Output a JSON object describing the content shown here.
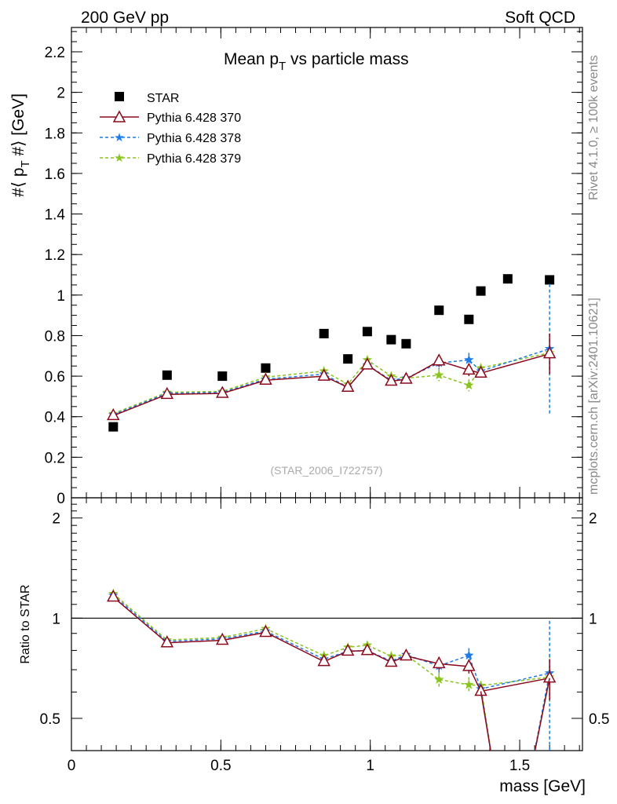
{
  "header": {
    "left": "200 GeV pp",
    "right": "Soft QCD"
  },
  "side_labels": {
    "rivet": "Rivet 4.1.0, ≥ 100k events",
    "mcplots": "mcplots.cern.ch [arXiv:2401.10621]"
  },
  "chart_data": {
    "type": "scatter",
    "title": "Mean p_T vs particle mass",
    "watermark": "(STAR_2006_I722757)",
    "xlabel": "mass [GeV]",
    "ylabel_main": "#⟨ p_T #⟩ [GeV]",
    "ylabel_ratio": "Ratio to STAR",
    "xlim": [
      0,
      1.71
    ],
    "ylim_main": [
      0,
      2.32
    ],
    "ylim_ratio": [
      0.4,
      2.3
    ],
    "ratio_scale": "log",
    "x_ticks": [
      0,
      0.5,
      1,
      1.5
    ],
    "x_tick_labels": [
      "0",
      "0.5",
      "1",
      "1.5"
    ],
    "y_ticks_main": [
      0,
      0.2,
      0.4,
      0.6,
      0.8,
      1,
      1.2,
      1.4,
      1.6,
      1.8,
      2,
      2.2
    ],
    "y_tick_labels_main": [
      "0",
      "0.2",
      "0.4",
      "0.6",
      "0.8",
      "1",
      "1.2",
      "1.4",
      "1.6",
      "1.8",
      "2",
      "2.2"
    ],
    "y_ticks_ratio": [
      0.5,
      1,
      2
    ],
    "y_tick_labels_ratio": [
      "0.5",
      "1",
      "2"
    ],
    "legend_position": "top-left",
    "reference": {
      "name": "STAR",
      "color": "#000000",
      "marker": "square",
      "x": [
        0.14,
        0.32,
        0.505,
        0.65,
        0.845,
        0.925,
        0.99,
        1.07,
        1.12,
        1.23,
        1.33,
        1.37,
        1.46,
        1.6
      ],
      "y": [
        0.35,
        0.605,
        0.6,
        0.64,
        0.81,
        0.685,
        0.82,
        0.78,
        0.76,
        0.925,
        0.88,
        1.02,
        1.08,
        1.075
      ]
    },
    "series": [
      {
        "name": "Pythia 6.428 370",
        "color": "#8b0a1d",
        "marker": "triangle-open",
        "dashed": false,
        "x": [
          0.14,
          0.32,
          0.505,
          0.65,
          0.845,
          0.925,
          0.99,
          1.07,
          1.12,
          1.23,
          1.33,
          1.37,
          1.6
        ],
        "y": [
          0.405,
          0.51,
          0.515,
          0.58,
          0.6,
          0.545,
          0.655,
          0.575,
          0.585,
          0.675,
          0.63,
          0.615,
          0.71
        ],
        "err": [
          0.005,
          0.005,
          0.005,
          0.005,
          0.01,
          0.01,
          0.01,
          0.01,
          0.01,
          0.03,
          0.03,
          0.02,
          0.1
        ]
      },
      {
        "name": "Pythia 6.428 378",
        "color": "#1e7be8",
        "marker": "star",
        "dashed": true,
        "x": [
          0.14,
          0.32,
          0.505,
          0.65,
          0.845,
          0.925,
          0.99,
          1.07,
          1.12,
          1.23,
          1.33,
          1.37,
          1.6
        ],
        "y": [
          0.41,
          0.515,
          0.52,
          0.585,
          0.61,
          0.545,
          0.655,
          0.58,
          0.59,
          0.665,
          0.68,
          0.625,
          0.735
        ],
        "err": [
          0.005,
          0.005,
          0.005,
          0.005,
          0.01,
          0.01,
          0.01,
          0.01,
          0.01,
          0.03,
          0.035,
          0.02,
          0.32
        ]
      },
      {
        "name": "Pythia 6.428 379",
        "color": "#8ac41e",
        "marker": "star",
        "dashed": true,
        "x": [
          0.14,
          0.32,
          0.505,
          0.65,
          0.845,
          0.925,
          0.99,
          1.07,
          1.12,
          1.23,
          1.33,
          1.37,
          1.6
        ],
        "y": [
          0.415,
          0.52,
          0.525,
          0.595,
          0.625,
          0.56,
          0.68,
          0.6,
          0.59,
          0.605,
          0.555,
          0.64,
          0.715
        ],
        "err": [
          0.005,
          0.005,
          0.005,
          0.005,
          0.01,
          0.01,
          0.015,
          0.01,
          0.01,
          0.03,
          0.03,
          0.02,
          0.12
        ]
      }
    ]
  }
}
